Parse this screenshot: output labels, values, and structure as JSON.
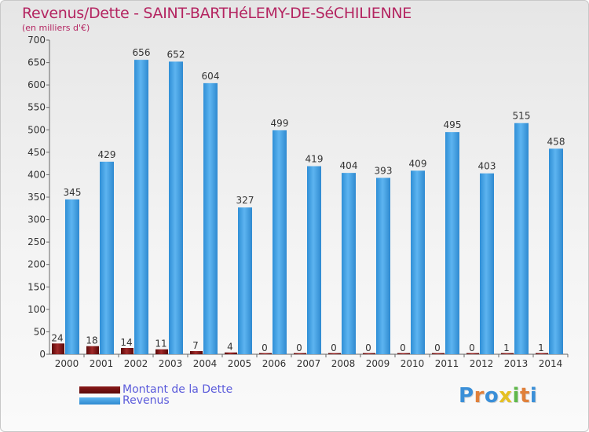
{
  "title": "Revenus/Dette - SAINT-BARTHéLEMY-DE-SéCHILIENNE",
  "subtitle": "(en milliers d'€)",
  "brand": "Proxiti",
  "colors": {
    "title": "#b42561",
    "dette": "#6e0d0d",
    "revenus": "#3e9ee2",
    "legend_text": "#5b5bdb"
  },
  "legend": {
    "dette_label": "Montant de la Dette",
    "revenus_label": "Revenus"
  },
  "chart_data": {
    "type": "bar",
    "title": "Revenus/Dette - SAINT-BARTHéLEMY-DE-SéCHILIENNE",
    "subtitle": "(en milliers d'€)",
    "xlabel": "",
    "ylabel": "",
    "ylim": [
      0,
      700
    ],
    "yticks": [
      0,
      50,
      100,
      150,
      200,
      250,
      300,
      350,
      400,
      450,
      500,
      550,
      600,
      650,
      700
    ],
    "grid": false,
    "legend_position": "bottom-left",
    "categories": [
      "2000",
      "2001",
      "2002",
      "2003",
      "2004",
      "2005",
      "2006",
      "2007",
      "2008",
      "2009",
      "2010",
      "2011",
      "2012",
      "2013",
      "2014"
    ],
    "series": [
      {
        "name": "Montant de la Dette",
        "values": [
          24,
          18,
          14,
          11,
          7,
          4,
          0,
          0,
          0,
          0,
          0,
          0,
          0,
          1,
          1
        ]
      },
      {
        "name": "Revenus",
        "values": [
          345,
          429,
          656,
          652,
          604,
          327,
          499,
          419,
          404,
          393,
          409,
          495,
          403,
          515,
          458
        ]
      }
    ]
  }
}
